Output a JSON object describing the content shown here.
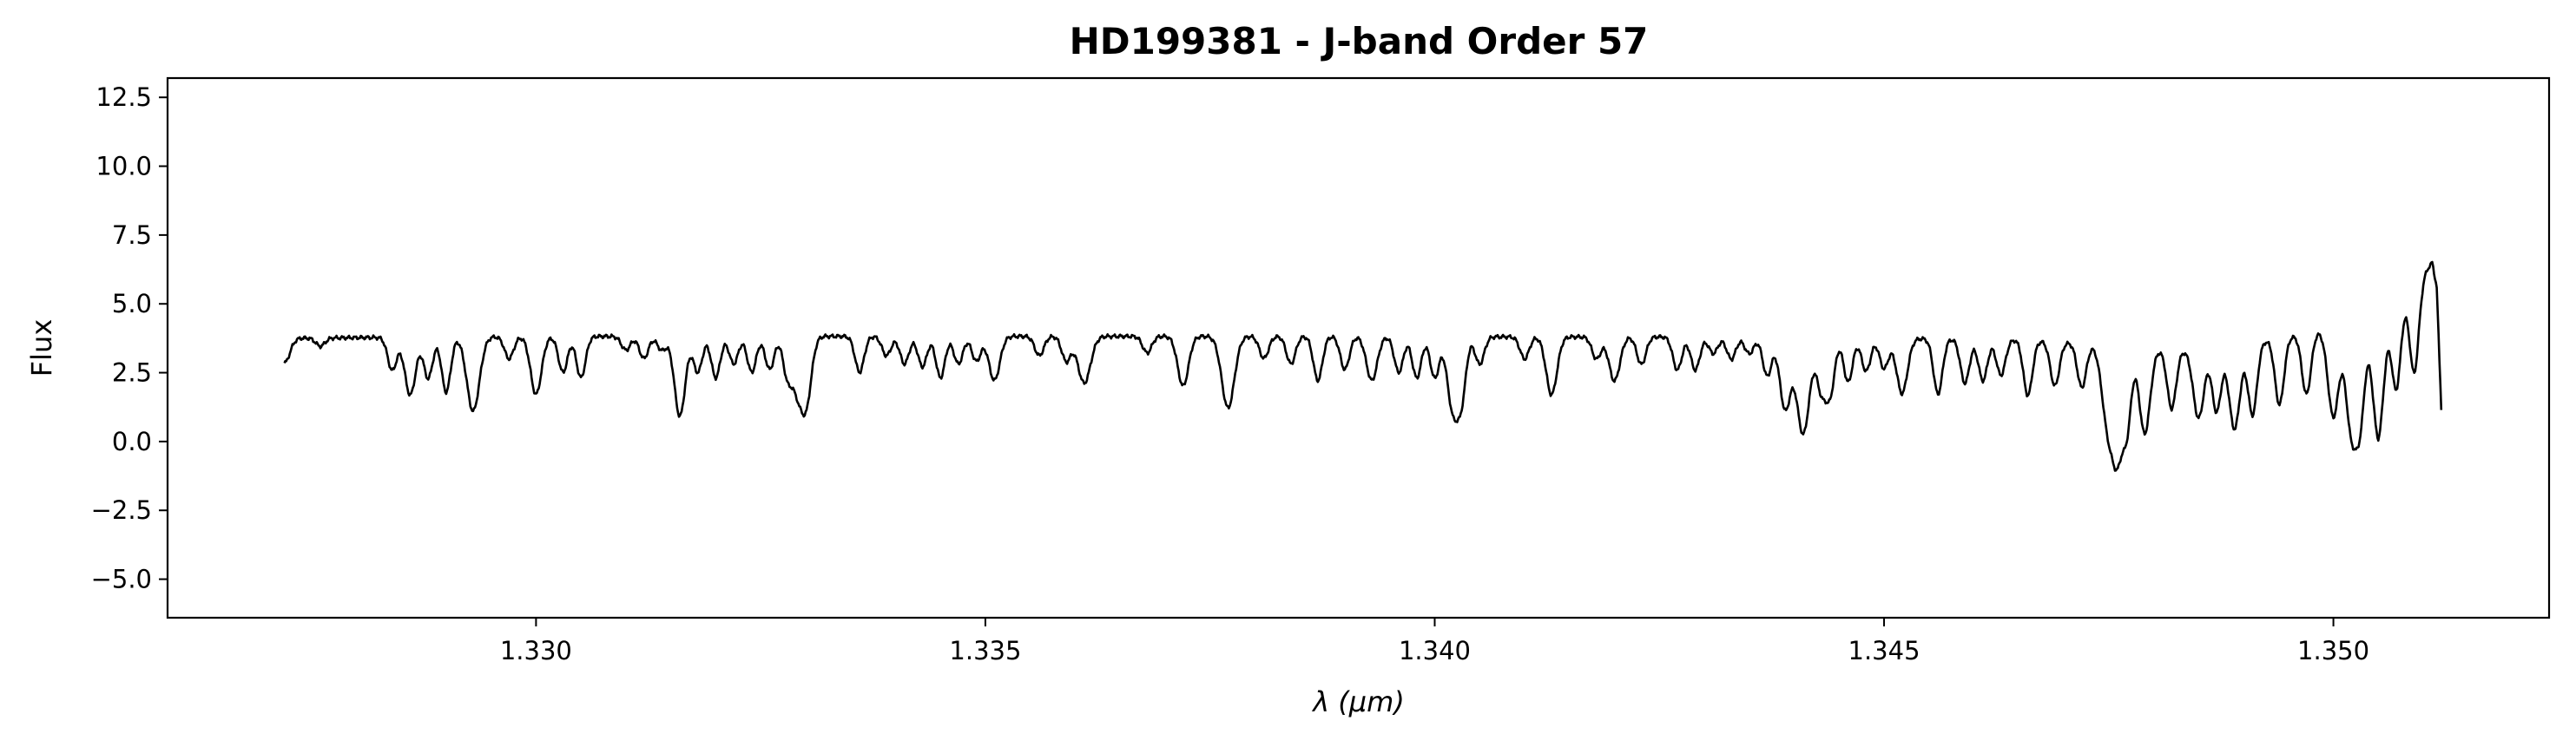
{
  "chart_data": {
    "type": "line",
    "title": "HD199381 - J-band Order 57",
    "xlabel": "λ (μm)",
    "ylabel": "Flux",
    "xlim": [
      1.3259,
      1.3524
    ],
    "ylim": [
      -6.4,
      13.2
    ],
    "xticks": [
      1.33,
      1.335,
      1.34,
      1.345,
      1.35
    ],
    "xtick_labels": [
      "1.330",
      "1.335",
      "1.340",
      "1.345",
      "1.350"
    ],
    "yticks": [
      -5.0,
      -2.5,
      0.0,
      2.5,
      5.0,
      7.5,
      10.0,
      12.5
    ],
    "ytick_labels": [
      "−5.0",
      "−2.5",
      "0.0",
      "2.5",
      "5.0",
      "7.5",
      "10.0",
      "12.5"
    ],
    "grid": false,
    "line_color": "#000000",
    "series": [
      {
        "x_start": 1.3272,
        "x_end": 1.3512,
        "continuum": [
          [
            1.3272,
            3.75
          ],
          [
            1.329,
            3.8
          ],
          [
            1.331,
            3.82
          ],
          [
            1.333,
            3.82
          ],
          [
            1.335,
            3.82
          ],
          [
            1.337,
            3.82
          ],
          [
            1.339,
            3.82
          ],
          [
            1.341,
            3.8
          ],
          [
            1.343,
            3.8
          ],
          [
            1.345,
            3.75
          ],
          [
            1.3465,
            3.7
          ],
          [
            1.3475,
            3.5
          ],
          [
            1.3482,
            3.3
          ],
          [
            1.3488,
            3.4
          ],
          [
            1.3495,
            3.8
          ],
          [
            1.35,
            4.1
          ],
          [
            1.3503,
            4.3
          ],
          [
            1.3505,
            3.8
          ],
          [
            1.3506,
            4.5
          ],
          [
            1.3508,
            5.3
          ],
          [
            1.351,
            6.1
          ],
          [
            1.3511,
            6.5
          ],
          [
            1.35115,
            5.6
          ],
          [
            1.3512,
            1.2
          ]
        ],
        "lines": [
          [
            1.3272,
            0.9,
            6e-05
          ],
          [
            1.3276,
            0.3,
            5e-05
          ],
          [
            1.3284,
            1.2,
            5e-05
          ],
          [
            1.3286,
            2.1,
            6e-05
          ],
          [
            1.3288,
            1.5,
            5e-05
          ],
          [
            1.329,
            2.0,
            5e-05
          ],
          [
            1.3293,
            2.7,
            7e-05
          ],
          [
            1.3297,
            0.8,
            5e-05
          ],
          [
            1.33,
            2.1,
            6e-05
          ],
          [
            1.3303,
            1.3,
            5e-05
          ],
          [
            1.3305,
            1.5,
            5e-05
          ],
          [
            1.331,
            0.5,
            5e-05
          ],
          [
            1.3312,
            0.8,
            5e-05
          ],
          [
            1.3314,
            0.5,
            5e-05
          ],
          [
            1.3316,
            2.9,
            6e-05
          ],
          [
            1.3318,
            1.3,
            5e-05
          ],
          [
            1.332,
            1.5,
            5e-05
          ],
          [
            1.3322,
            1.0,
            5e-05
          ],
          [
            1.3324,
            1.3,
            5e-05
          ],
          [
            1.3326,
            1.2,
            5e-05
          ],
          [
            1.3328,
            1.5,
            5e-05
          ],
          [
            1.3329,
            1.4,
            5e-05
          ],
          [
            1.333,
            2.6,
            6e-05
          ],
          [
            1.3336,
            1.3,
            5e-05
          ],
          [
            1.3339,
            0.7,
            5e-05
          ],
          [
            1.3341,
            1.0,
            5e-05
          ],
          [
            1.3343,
            1.1,
            5e-05
          ],
          [
            1.3345,
            1.5,
            5e-05
          ],
          [
            1.3347,
            1.0,
            5e-05
          ],
          [
            1.3349,
            0.9,
            5e-05
          ],
          [
            1.3351,
            1.6,
            6e-05
          ],
          [
            1.3356,
            0.7,
            5e-05
          ],
          [
            1.3359,
            0.9,
            5e-05
          ],
          [
            1.3361,
            1.7,
            7e-05
          ],
          [
            1.3368,
            0.6,
            5e-05
          ],
          [
            1.3372,
            1.8,
            6e-05
          ],
          [
            1.3377,
            2.6,
            7e-05
          ],
          [
            1.3381,
            0.8,
            5e-05
          ],
          [
            1.3384,
            1.0,
            5e-05
          ],
          [
            1.3387,
            1.6,
            5e-05
          ],
          [
            1.339,
            1.2,
            5e-05
          ],
          [
            1.3393,
            1.6,
            6e-05
          ],
          [
            1.3396,
            1.3,
            5e-05
          ],
          [
            1.3398,
            1.5,
            5e-05
          ],
          [
            1.34,
            1.5,
            5e-05
          ],
          [
            1.3402,
            2.6,
            6e-05
          ],
          [
            1.3403,
            2.0,
            5e-05
          ],
          [
            1.3405,
            1.0,
            5e-05
          ],
          [
            1.341,
            0.8,
            5e-05
          ],
          [
            1.3413,
            2.1,
            6e-05
          ],
          [
            1.3418,
            0.8,
            5e-05
          ],
          [
            1.342,
            1.6,
            6e-05
          ],
          [
            1.3423,
            1.0,
            5e-05
          ],
          [
            1.3427,
            1.2,
            5e-05
          ],
          [
            1.3429,
            1.2,
            5e-05
          ],
          [
            1.3431,
            0.6,
            5e-05
          ],
          [
            1.3433,
            0.8,
            5e-05
          ],
          [
            1.3435,
            0.6,
            5e-05
          ],
          [
            1.3437,
            1.4,
            5e-05
          ],
          [
            1.3439,
            2.6,
            6e-05
          ],
          [
            1.3441,
            3.5,
            7e-05
          ],
          [
            1.3443,
            1.8,
            5e-05
          ],
          [
            1.3444,
            2.0,
            5e-05
          ],
          [
            1.3446,
            1.6,
            5e-05
          ],
          [
            1.3448,
            1.2,
            5e-05
          ],
          [
            1.345,
            1.1,
            5e-05
          ],
          [
            1.3452,
            2.0,
            6e-05
          ],
          [
            1.3456,
            2.0,
            5e-05
          ],
          [
            1.3459,
            1.6,
            5e-05
          ],
          [
            1.3461,
            1.5,
            5e-05
          ],
          [
            1.3463,
            1.3,
            5e-05
          ],
          [
            1.3466,
            2.0,
            5e-05
          ],
          [
            1.3469,
            1.6,
            5e-05
          ],
          [
            1.3472,
            1.6,
            5e-05
          ],
          [
            1.3475,
            3.2,
            7e-05
          ],
          [
            1.3476,
            2.9,
            5e-05
          ],
          [
            1.3477,
            3.0,
            5e-05
          ],
          [
            1.3479,
            3.1,
            6e-05
          ],
          [
            1.3482,
            2.1,
            5e-05
          ],
          [
            1.3485,
            2.5,
            6e-05
          ],
          [
            1.3487,
            2.3,
            5e-05
          ],
          [
            1.3489,
            3.0,
            6e-05
          ],
          [
            1.3491,
            2.6,
            5e-05
          ],
          [
            1.3494,
            2.4,
            5e-05
          ],
          [
            1.3497,
            2.2,
            5e-05
          ],
          [
            1.35,
            3.2,
            6e-05
          ],
          [
            1.3502,
            3.8,
            6e-05
          ],
          [
            1.3503,
            3.1,
            5e-05
          ],
          [
            1.3505,
            3.7,
            6e-05
          ],
          [
            1.3507,
            3.0,
            5e-05
          ],
          [
            1.3509,
            3.2,
            5e-05
          ]
        ]
      }
    ]
  }
}
